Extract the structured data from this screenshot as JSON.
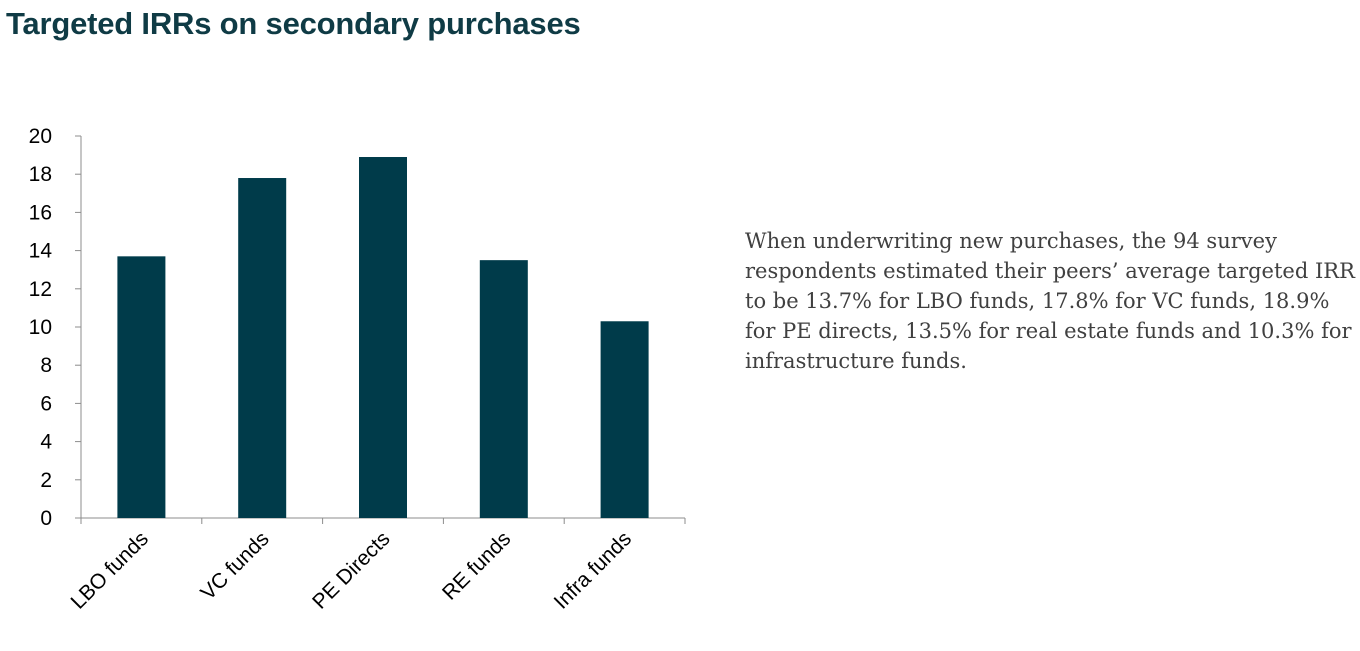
{
  "chart_data": {
    "type": "bar",
    "title": "Targeted IRRs on secondary purchases",
    "categories": [
      "LBO funds",
      "VC funds",
      "PE Directs",
      "RE funds",
      "Infra funds"
    ],
    "values": [
      13.7,
      17.8,
      18.9,
      13.5,
      10.3
    ],
    "ylim": [
      0,
      20
    ],
    "yticks": [
      0,
      2,
      4,
      6,
      8,
      10,
      12,
      14,
      16,
      18,
      20
    ],
    "xlabel": "",
    "ylabel": "",
    "grid": false,
    "bar_color": "#003b4a"
  },
  "note": "When underwriting new purchases, the 94 survey respondents estimated their peers’ average targeted IRR to be 13.7% for LBO funds, 17.8% for VC funds, 18.9% for PE directs, 13.5% for real estate funds and 10.3% for infrastructure funds."
}
